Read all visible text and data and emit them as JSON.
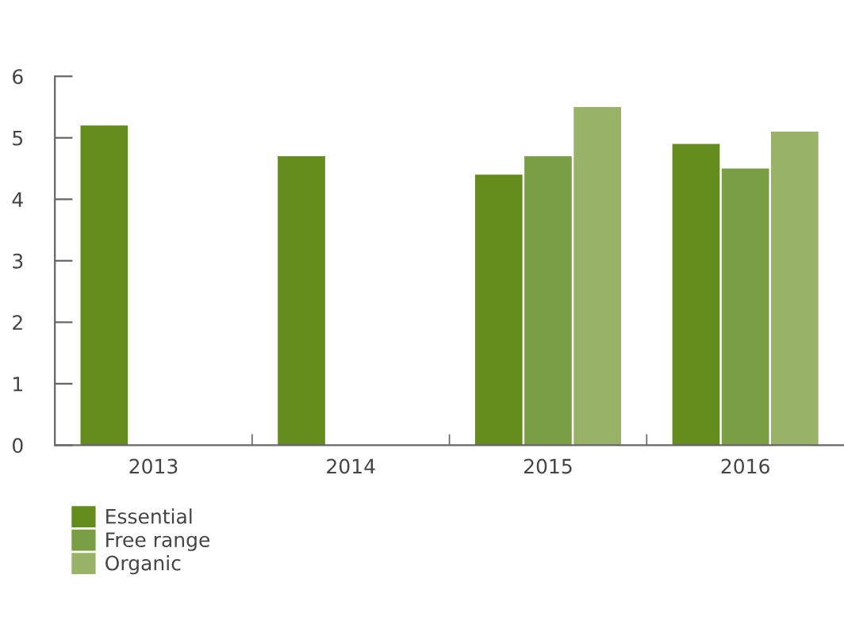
{
  "chart_data": {
    "type": "bar",
    "categories": [
      "2013",
      "2014",
      "2015",
      "2016"
    ],
    "series": [
      {
        "name": "Essential",
        "color": "#638c1c",
        "values": [
          5.2,
          4.7,
          4.4,
          4.9
        ]
      },
      {
        "name": "Free range",
        "color": "#7a9e44",
        "values": [
          null,
          null,
          4.7,
          4.5
        ]
      },
      {
        "name": "Organic",
        "color": "#98b268",
        "values": [
          null,
          null,
          5.5,
          5.1
        ]
      }
    ],
    "ylim": [
      0,
      6
    ],
    "yticks": [
      0,
      1,
      2,
      3,
      4,
      5,
      6
    ],
    "grid": false,
    "legend": "bottom left"
  }
}
